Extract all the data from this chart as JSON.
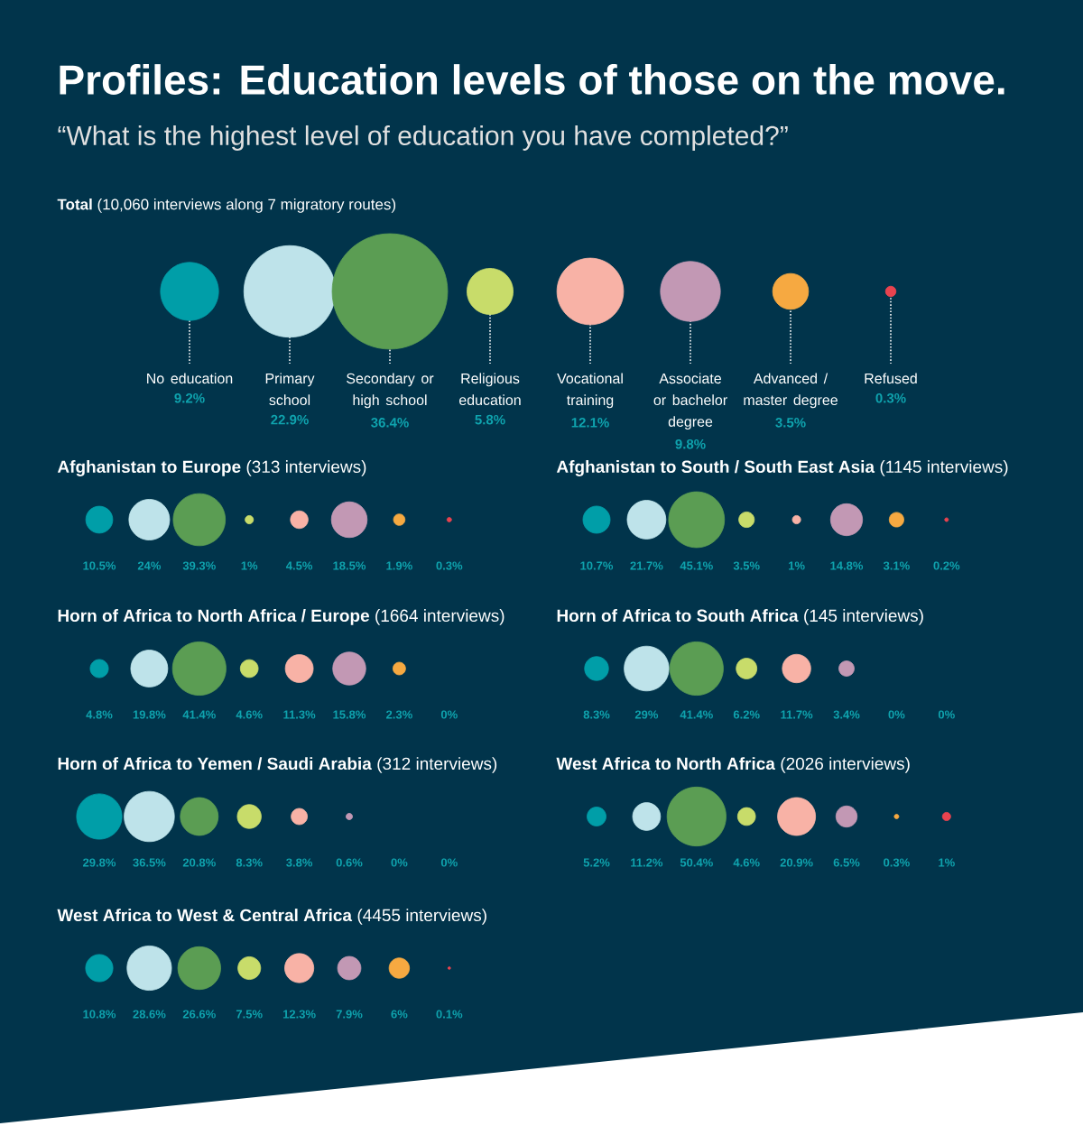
{
  "chart_data": [
    {
      "type": "other",
      "title": "Profiles: Education levels of those on the move.",
      "subtitle": "“What is the highest level of education you have completed?”",
      "annotations": [
        "**Total** (10,060 interviews along 7 migratory routes)"
      ],
      "categories": [
        "No education",
        "Primary school",
        "Secondary or high school",
        "Religious education",
        "Vocational training",
        "Associate or bachelor degree",
        "Advanced / master degree",
        "Refused"
      ],
      "values": [
        9.2,
        22.9,
        36.4,
        5.8,
        12.1,
        9.8,
        3.5,
        0.3
      ],
      "value_labels": [
        "9.2%",
        "22.9%",
        "36.4%",
        "5.8%",
        "12.1%",
        "9.8%",
        "3.5%",
        "0.3%"
      ],
      "colors": [
        "#009ea8",
        "#bee3ea",
        "#5b9d53",
        "#c8dc6a",
        "#f8b2a6",
        "#c298b4",
        "#f6a941",
        "#e8434f"
      ]
    },
    {
      "type": "other",
      "title": "**Afghanistan to Europe** (313 interviews)",
      "categories": [
        null,
        null,
        null,
        null,
        null,
        null,
        null,
        null
      ],
      "values": [
        10.5,
        24,
        39.3,
        1,
        4.5,
        18.5,
        1.9,
        0.3
      ],
      "value_labels": [
        "10.5%",
        "24%",
        "39.3%",
        "1%",
        "4.5%",
        "18.5%",
        "1.9%",
        "0.3%"
      ],
      "colors": [
        "#009ea8",
        "#bee3ea",
        "#5b9d53",
        "#c8dc6a",
        "#f8b2a6",
        "#c298b4",
        "#f6a941",
        "#e8434f"
      ]
    },
    {
      "type": "other",
      "title": "**Afghanistan to South / South East Asia** (1145 interviews)",
      "categories": [
        null,
        null,
        null,
        null,
        null,
        null,
        null,
        null
      ],
      "values": [
        10.7,
        21.7,
        45.1,
        3.5,
        1,
        14.8,
        3.1,
        0.2
      ],
      "value_labels": [
        "10.7%",
        "21.7%",
        "45.1%",
        "3.5%",
        "1%",
        "14.8%",
        "3.1%",
        "0.2%"
      ],
      "colors": [
        "#009ea8",
        "#bee3ea",
        "#5b9d53",
        "#c8dc6a",
        "#f8b2a6",
        "#c298b4",
        "#f6a941",
        "#e8434f"
      ]
    },
    {
      "type": "other",
      "title": "**Horn of Africa to North Africa / Europe** (1664 interviews)",
      "categories": [
        null,
        null,
        null,
        null,
        null,
        null,
        null,
        null
      ],
      "values": [
        4.8,
        19.8,
        41.4,
        4.6,
        11.3,
        15.8,
        2.3,
        0
      ],
      "value_labels": [
        "4.8%",
        "19.8%",
        "41.4%",
        "4.6%",
        "11.3%",
        "15.8%",
        "2.3%",
        "0%"
      ],
      "colors": [
        "#009ea8",
        "#bee3ea",
        "#5b9d53",
        "#c8dc6a",
        "#f8b2a6",
        "#c298b4",
        "#f6a941",
        "#e8434f"
      ]
    },
    {
      "type": "other",
      "title": "**Horn of Africa to South Africa** (145 interviews)",
      "categories": [
        null,
        null,
        null,
        null,
        null,
        null,
        null,
        null
      ],
      "values": [
        8.3,
        29,
        41.4,
        6.2,
        11.7,
        3.4,
        0,
        0
      ],
      "value_labels": [
        "8.3%",
        "29%",
        "41.4%",
        "6.2%",
        "11.7%",
        "3.4%",
        "0%",
        "0%"
      ],
      "colors": [
        "#009ea8",
        "#bee3ea",
        "#5b9d53",
        "#c8dc6a",
        "#f8b2a6",
        "#c298b4",
        "#f6a941",
        "#e8434f"
      ]
    },
    {
      "type": "other",
      "title": "**Horn of Africa to Yemen / Saudi Arabia** (312 interviews)",
      "categories": [
        null,
        null,
        null,
        null,
        null,
        null,
        null,
        null
      ],
      "values": [
        29.8,
        36.5,
        20.8,
        8.3,
        3.8,
        0.6,
        0,
        0
      ],
      "value_labels": [
        "29.8%",
        "36.5%",
        "20.8%",
        "8.3%",
        "3.8%",
        "0.6%",
        "0%",
        "0%"
      ],
      "colors": [
        "#009ea8",
        "#bee3ea",
        "#5b9d53",
        "#c8dc6a",
        "#f8b2a6",
        "#c298b4",
        "#f6a941",
        "#e8434f"
      ]
    },
    {
      "type": "other",
      "title": "**West Africa to North Africa** (2026 interviews)",
      "categories": [
        null,
        null,
        null,
        null,
        null,
        null,
        null,
        null
      ],
      "values": [
        5.2,
        11.2,
        50.4,
        4.6,
        20.9,
        6.5,
        0.3,
        1
      ],
      "value_labels": [
        "5.2%",
        "11.2%",
        "50.4%",
        "4.6%",
        "20.9%",
        "6.5%",
        "0.3%",
        "1%"
      ],
      "colors": [
        "#009ea8",
        "#bee3ea",
        "#5b9d53",
        "#c8dc6a",
        "#f8b2a6",
        "#c298b4",
        "#f6a941",
        "#e8434f"
      ]
    },
    {
      "type": "other",
      "title": "**West Africa to West & Central Africa** (4455 interviews)",
      "categories": [
        null,
        null,
        null,
        null,
        null,
        null,
        null,
        null
      ],
      "values": [
        10.8,
        28.6,
        26.6,
        7.5,
        12.3,
        7.9,
        6,
        0.1
      ],
      "value_labels": [
        "10.8%",
        "28.6%",
        "26.6%",
        "7.5%",
        "12.3%",
        "7.9%",
        "6%",
        "0.1%"
      ],
      "colors": [
        "#009ea8",
        "#bee3ea",
        "#5b9d53",
        "#c8dc6a",
        "#f8b2a6",
        "#c298b4",
        "#f6a941",
        "#e8434f"
      ]
    }
  ]
}
